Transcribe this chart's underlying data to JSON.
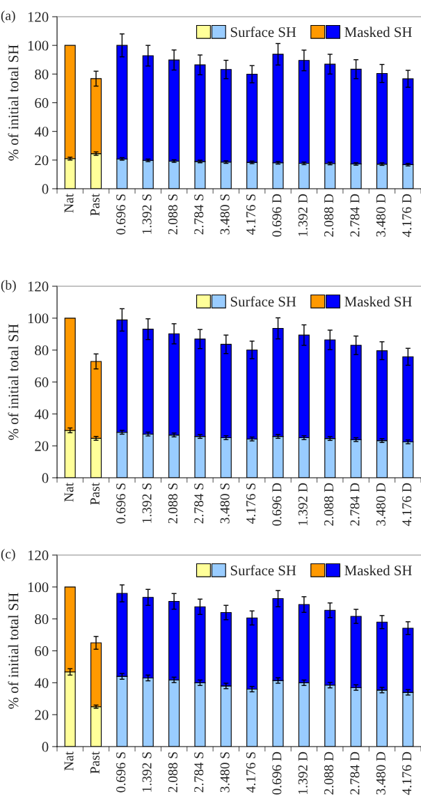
{
  "chart_data": [
    {
      "type": "bar",
      "title": "(a)",
      "ylabel": "% of initial total SH",
      "stacked": true,
      "legend": "top right",
      "grid": false,
      "categories": [
        "Nat",
        "Past",
        "0.696 S",
        "1.392 S",
        "2.088 S",
        "2.784 S",
        "3.480 S",
        "4.176 S",
        "0.696 D",
        "1.392 D",
        "2.088 D",
        "2.784 D",
        "3.480 D",
        "4.176 D"
      ],
      "ylim": [
        0,
        120
      ],
      "yticks": [
        0,
        20,
        40,
        60,
        80,
        100,
        120
      ],
      "series": [
        {
          "name": "Surface SH",
          "colors": [
            "#ffff99",
            "#ffff99",
            "#99ccff",
            "#99ccff",
            "#99ccff",
            "#99ccff",
            "#99ccff",
            "#99ccff",
            "#99ccff",
            "#99ccff",
            "#99ccff",
            "#99ccff",
            "#99ccff",
            "#99ccff"
          ],
          "values": [
            21,
            24.5,
            20.8,
            19.8,
            19.3,
            19,
            18.6,
            18.4,
            18.1,
            17.7,
            17.6,
            17.3,
            17.2,
            16.8
          ],
          "errors": [
            1,
            1.2,
            0.9,
            0.9,
            0.9,
            0.9,
            0.9,
            0.9,
            0.9,
            0.9,
            0.9,
            0.9,
            0.9,
            0.9
          ]
        },
        {
          "name": "Masked SH",
          "colors": [
            "#ff9900",
            "#ff9900",
            "#0000ff",
            "#0000ff",
            "#0000ff",
            "#0000ff",
            "#0000ff",
            "#0000ff",
            "#0000ff",
            "#0000ff",
            "#0000ff",
            "#0000ff",
            "#0000ff",
            "#0000ff"
          ],
          "values": [
            79,
            52.3,
            79.2,
            73,
            70.5,
            67.4,
            64.6,
            61.5,
            75.7,
            71.8,
            69.3,
            66.1,
            63.2,
            59.9
          ],
          "errors": [
            null,
            5.2,
            8,
            7.2,
            7,
            6.9,
            6.4,
            6,
            7.5,
            7.2,
            6.9,
            6.6,
            6.3,
            5.9
          ]
        }
      ]
    },
    {
      "type": "bar",
      "title": "(b)",
      "ylabel": "% of initial total SH",
      "stacked": true,
      "legend": "top right",
      "grid": false,
      "categories": [
        "Nat",
        "Past",
        "0.696 S",
        "1.392 S",
        "2.088 S",
        "2.784 S",
        "3.480 S",
        "4.176 S",
        "0.696 D",
        "1.392 D",
        "2.088 D",
        "2.784 D",
        "3.480 D",
        "4.176 D"
      ],
      "ylim": [
        0,
        120
      ],
      "yticks": [
        0,
        20,
        40,
        60,
        80,
        100,
        120
      ],
      "series": [
        {
          "name": "Surface SH",
          "colors": [
            "#ffff99",
            "#ffff99",
            "#99ccff",
            "#99ccff",
            "#99ccff",
            "#99ccff",
            "#99ccff",
            "#99ccff",
            "#99ccff",
            "#99ccff",
            "#99ccff",
            "#99ccff",
            "#99ccff",
            "#99ccff"
          ],
          "values": [
            29.7,
            24.7,
            28.5,
            27.4,
            26.8,
            25.9,
            25.1,
            24.3,
            25.9,
            25.1,
            24.6,
            23.9,
            23.3,
            22.5
          ],
          "errors": [
            1.5,
            1.2,
            1.2,
            1.2,
            1.2,
            1.2,
            1.2,
            1.2,
            1.2,
            1.2,
            1.2,
            1.2,
            1.2,
            1.2
          ]
        },
        {
          "name": "Masked SH",
          "colors": [
            "#ff9900",
            "#ff9900",
            "#0000ff",
            "#0000ff",
            "#0000ff",
            "#0000ff",
            "#0000ff",
            "#0000ff",
            "#0000ff",
            "#0000ff",
            "#0000ff",
            "#0000ff",
            "#0000ff",
            "#0000ff"
          ],
          "values": [
            70.3,
            48.2,
            70.4,
            65.7,
            63.4,
            61,
            58.5,
            55.8,
            67.7,
            64.3,
            61.8,
            59.1,
            56.3,
            53.3
          ],
          "errors": [
            null,
            4.7,
            7,
            6.5,
            6.3,
            6,
            5.8,
            5.5,
            6.6,
            6.4,
            6.1,
            5.8,
            5.6,
            5.3
          ]
        }
      ]
    },
    {
      "type": "bar",
      "title": "(c)",
      "ylabel": "% of initial total SH",
      "stacked": true,
      "legend": "top right",
      "grid": false,
      "categories": [
        "Nat",
        "Past",
        "0.696 S",
        "1.392 S",
        "2.088 S",
        "2.784 S",
        "3.480 S",
        "4.176 S",
        "0.696 D",
        "1.392 D",
        "2.088 D",
        "2.784 D",
        "3.480 D",
        "4.176 D"
      ],
      "ylim": [
        0,
        120
      ],
      "yticks": [
        0,
        20,
        40,
        60,
        80,
        100,
        120
      ],
      "series": [
        {
          "name": "Surface SH",
          "colors": [
            "#ffff99",
            "#ffff99",
            "#99ccff",
            "#99ccff",
            "#99ccff",
            "#99ccff",
            "#99ccff",
            "#99ccff",
            "#99ccff",
            "#99ccff",
            "#99ccff",
            "#99ccff",
            "#99ccff",
            "#99ccff"
          ],
          "values": [
            46.8,
            25,
            44,
            43,
            41.8,
            40,
            38,
            36,
            41.4,
            40,
            38.5,
            37,
            35.4,
            34
          ],
          "errors": [
            2,
            1,
            1.8,
            1.8,
            1.7,
            1.7,
            1.7,
            1.7,
            1.7,
            1.7,
            1.7,
            1.7,
            1.7,
            1.7
          ]
        },
        {
          "name": "Masked SH",
          "colors": [
            "#ff9900",
            "#ff9900",
            "#0000ff",
            "#0000ff",
            "#0000ff",
            "#0000ff",
            "#0000ff",
            "#0000ff",
            "#0000ff",
            "#0000ff",
            "#0000ff",
            "#0000ff",
            "#0000ff",
            "#0000ff"
          ],
          "values": [
            53.2,
            40,
            52,
            50.5,
            49.2,
            47.6,
            46,
            44.6,
            51.3,
            49,
            46.9,
            44.6,
            42.6,
            40.2
          ],
          "errors": [
            null,
            4,
            5.3,
            5,
            4.9,
            4.8,
            4.5,
            4.4,
            5.1,
            4.9,
            4.6,
            4.4,
            4.1,
            4
          ]
        }
      ]
    }
  ]
}
